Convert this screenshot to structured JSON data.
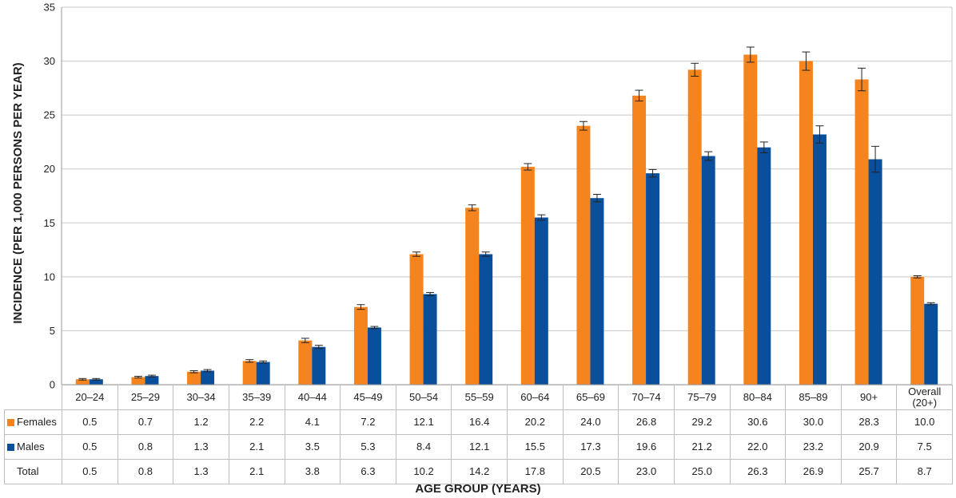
{
  "colors": {
    "females": "#f5841f",
    "males": "#0a4f9c",
    "grid": "#c8c8c8",
    "error_bar": "#222222"
  },
  "chart_data": {
    "type": "bar",
    "title": "",
    "xlabel": "AGE GROUP (YEARS)",
    "ylabel": "INCIDENCE (PER 1,000 PERSONS PER YEAR)",
    "ylim": [
      0,
      35
    ],
    "yticks": [
      0,
      5,
      10,
      15,
      20,
      25,
      30,
      35
    ],
    "grid": true,
    "legend": "table-bottom-left",
    "categories": [
      "20–24",
      "25–29",
      "30–34",
      "35–39",
      "40–44",
      "45–49",
      "50–54",
      "55–59",
      "60–64",
      "65–69",
      "70–74",
      "75–79",
      "80–84",
      "85–89",
      "90+",
      "Overall (20+)"
    ],
    "series": [
      {
        "name": "Females",
        "key": "females",
        "values": [
          0.5,
          0.7,
          1.2,
          2.2,
          4.1,
          7.2,
          12.1,
          16.4,
          20.2,
          24.0,
          26.8,
          29.2,
          30.6,
          30.0,
          28.3,
          10.0
        ],
        "error": [
          0.07,
          0.08,
          0.1,
          0.12,
          0.2,
          0.22,
          0.2,
          0.27,
          0.3,
          0.4,
          0.5,
          0.6,
          0.7,
          0.85,
          1.05,
          0.1
        ]
      },
      {
        "name": "Males",
        "key": "males",
        "values": [
          0.5,
          0.8,
          1.3,
          2.1,
          3.5,
          5.3,
          8.4,
          12.1,
          15.5,
          17.3,
          19.6,
          21.2,
          22.0,
          23.2,
          20.9,
          7.5
        ],
        "error": [
          0.07,
          0.08,
          0.1,
          0.1,
          0.15,
          0.1,
          0.15,
          0.2,
          0.25,
          0.35,
          0.35,
          0.4,
          0.5,
          0.8,
          1.2,
          0.1
        ]
      }
    ],
    "table": {
      "rows": [
        {
          "label": "Females",
          "key": "females",
          "values": [
            "0.5",
            "0.7",
            "1.2",
            "2.2",
            "4.1",
            "7.2",
            "12.1",
            "16.4",
            "20.2",
            "24.0",
            "26.8",
            "29.2",
            "30.6",
            "30.0",
            "28.3",
            "10.0"
          ]
        },
        {
          "label": "Males",
          "key": "males",
          "values": [
            "0.5",
            "0.8",
            "1.3",
            "2.1",
            "3.5",
            "5.3",
            "8.4",
            "12.1",
            "15.5",
            "17.3",
            "19.6",
            "21.2",
            "22.0",
            "23.2",
            "20.9",
            "7.5"
          ]
        },
        {
          "label": "Total",
          "key": "",
          "values": [
            "0.5",
            "0.8",
            "1.3",
            "2.1",
            "3.8",
            "6.3",
            "10.2",
            "14.2",
            "17.8",
            "20.5",
            "23.0",
            "25.0",
            "26.3",
            "26.9",
            "25.7",
            "8.7"
          ]
        }
      ]
    }
  }
}
